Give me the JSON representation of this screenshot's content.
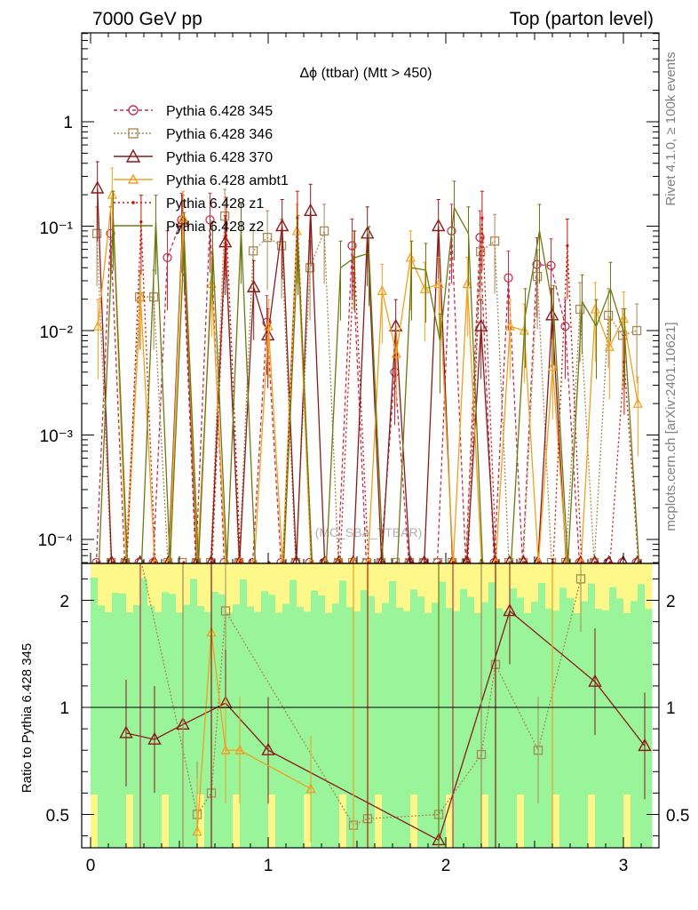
{
  "header": {
    "left": "7000 GeV pp",
    "right": "Top (parton level)"
  },
  "side_labels": {
    "rivet": "Rivet 4.1.0, ≥ 100k events",
    "mcplots": "mcplots.cern.ch [arXiv:2401.10621]"
  },
  "chart_data": {
    "type": "line",
    "title": "Δϕ (ttbar) (Mtt > 450)",
    "watermark": "(MC_SBA_TTBAR)",
    "xlabel": "",
    "ylabel": "",
    "xlim": [
      -0.05,
      3.19
    ],
    "ylim": [
      6.5e-05,
      7.5
    ],
    "yscale": "log",
    "x_ticks": [
      "0",
      "1",
      "2",
      "3"
    ],
    "y_ticks": [
      "10⁻⁴",
      "10⁻³",
      "10⁻²",
      "10⁻¹",
      "1"
    ],
    "floor_value": 2.6e-05,
    "bin_centers": [
      0.04,
      0.12,
      0.2,
      0.28,
      0.36,
      0.44,
      0.52,
      0.6,
      0.68,
      0.76,
      0.84,
      0.92,
      1.0,
      1.08,
      1.16,
      1.24,
      1.32,
      1.4,
      1.48,
      1.56,
      1.64,
      1.72,
      1.8,
      1.88,
      1.96,
      2.04,
      2.12,
      2.2,
      2.28,
      2.36,
      2.44,
      2.52,
      2.6,
      2.68,
      2.76,
      2.84,
      2.92,
      3.0,
      3.08
    ],
    "series": [
      {
        "name": "Pythia 6.428 345",
        "color": "#c0304e",
        "dash": "4,3",
        "marker": "circle",
        "values": [
          0,
          0.085,
          0,
          0,
          0,
          0.05,
          0.115,
          0,
          0.115,
          0,
          0,
          0,
          0.012,
          0,
          0,
          0,
          0,
          0,
          0.065,
          0,
          0,
          0.004,
          0,
          0,
          0,
          0.09,
          0,
          0.078,
          0,
          0.032,
          0,
          0.043,
          0.042,
          0.011,
          0,
          0,
          0,
          0,
          0
        ]
      },
      {
        "name": "Pythia 6.428 346",
        "color": "#a88a55",
        "dash": "2,2",
        "marker": "square",
        "values": [
          0.085,
          0,
          0,
          0.021,
          0.021,
          0,
          0,
          0,
          0,
          0.125,
          0,
          0.058,
          0.078,
          0.065,
          0,
          0.04,
          0.09,
          0,
          0,
          0,
          0,
          0,
          0,
          0,
          0,
          0,
          0,
          0.057,
          0.072,
          0,
          0,
          0.033,
          0,
          0,
          0.016,
          0,
          0.014,
          0.009,
          0.01
        ]
      },
      {
        "name": "Pythia 6.428 370",
        "color": "#8b1a1a",
        "dash": "",
        "marker": "triangle",
        "values": [
          0.23,
          0,
          0,
          0,
          0,
          0,
          0.11,
          0,
          0,
          0.07,
          0,
          0.026,
          0.009,
          0.1,
          0,
          0.14,
          0,
          0,
          0,
          0.085,
          0,
          0.011,
          0,
          0,
          0.1,
          0,
          0,
          0.011,
          0,
          0,
          0,
          0,
          0.014,
          0,
          0,
          0,
          0,
          0,
          0
        ]
      },
      {
        "name": "Pythia 6.428 ambt1",
        "color": "#f0a020",
        "dash": "",
        "marker": "triangle-open",
        "values": [
          0.011,
          0.2,
          0,
          0.021,
          0,
          0,
          0.12,
          0,
          0.028,
          0,
          0,
          0,
          0.011,
          0,
          0.09,
          0,
          0,
          0,
          0,
          0,
          0.024,
          0.006,
          0.05,
          0.025,
          0.028,
          0,
          0.028,
          0,
          0,
          0.011,
          0.01,
          0,
          0.0045,
          0,
          0,
          0.016,
          0.007,
          0.013,
          0.002
        ]
      },
      {
        "name": "Pythia 6.428 z1",
        "color": "#cc1100",
        "dash": "2,3",
        "marker": "dot",
        "values": [
          0,
          0,
          0,
          0.11,
          0,
          0,
          0,
          0,
          0,
          0.105,
          0,
          0,
          0,
          0,
          0.12,
          0,
          0,
          0,
          0.05,
          0,
          0,
          0,
          0,
          0,
          0,
          0,
          0,
          0.12,
          0,
          0,
          0,
          0,
          0,
          0.065,
          0,
          0,
          0,
          0.005,
          0
        ]
      },
      {
        "name": "Pythia 6.428 z2",
        "color": "#6b7a10",
        "dash": "",
        "marker": "none",
        "values": [
          0,
          0.12,
          0,
          0,
          0.11,
          0,
          0.075,
          0,
          0.062,
          0,
          0.09,
          0,
          0,
          0,
          0.07,
          0,
          0,
          0.04,
          0.05,
          0.055,
          0,
          0,
          0.04,
          0.038,
          0.008,
          0.15,
          0.085,
          0,
          0,
          0,
          0.014,
          0.09,
          0.015,
          0,
          0.019,
          0.011,
          0.025,
          0.009,
          0
        ]
      }
    ],
    "ratio_panel": {
      "ylabel": "Ratio to Pythia 6.428 345",
      "ylim": [
        0.35,
        2.55
      ],
      "y_ticks": [
        "0.5",
        "1",
        "2"
      ],
      "series": [
        {
          "name": "Pythia 6.428 346",
          "x": [
            0.2,
            0.6,
            0.68,
            0.76,
            1.48,
            1.56,
            1.96,
            2.2,
            2.28,
            2.52,
            2.76
          ],
          "values": [
            2.0,
            0.5,
            0.6,
            1.45,
            0.45,
            0.48,
            0.5,
            0.78,
            1.2,
            0.8,
            1.6
          ]
        },
        {
          "name": "Pythia 6.428 370",
          "x": [
            0.2,
            0.36,
            0.52,
            0.76,
            1.0,
            1.96,
            2.36,
            2.84,
            3.12
          ],
          "values": [
            0.88,
            0.85,
            0.92,
            1.02,
            0.8,
            0.38,
            1.45,
            1.12,
            0.82
          ]
        },
        {
          "name": "Pythia 6.428 ambt1",
          "x": [
            0.6,
            0.68,
            0.76,
            0.84,
            1.24
          ],
          "values": [
            0.42,
            1.35,
            0.8,
            0.8,
            0.62
          ]
        }
      ]
    }
  }
}
